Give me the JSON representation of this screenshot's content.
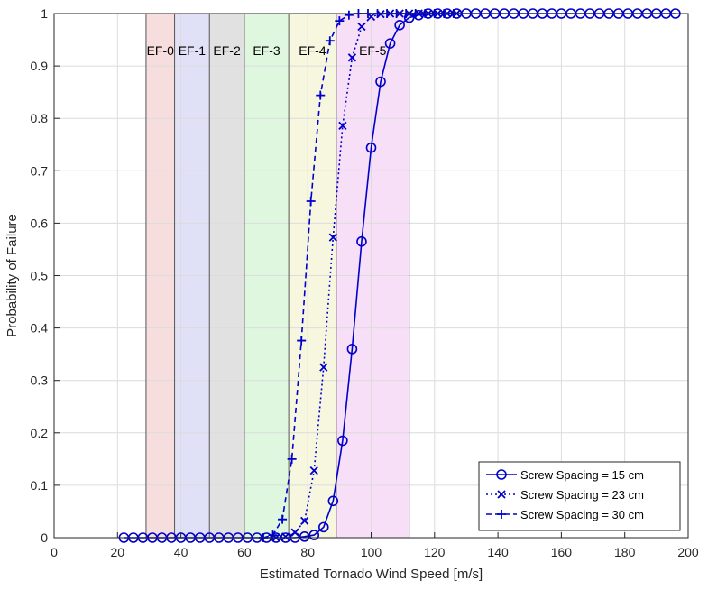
{
  "chart_data": {
    "type": "line",
    "xlabel": "Estimated Tornado Wind Speed [m/s]",
    "ylabel": "Probability of Failure",
    "xlim": [
      0,
      200
    ],
    "ylim": [
      0,
      1
    ],
    "xticks": [
      0,
      20,
      40,
      60,
      80,
      100,
      120,
      140,
      160,
      180,
      200
    ],
    "yticks": [
      0,
      0.1,
      0.2,
      0.3,
      0.4,
      0.5,
      0.6,
      0.7,
      0.8,
      0.9,
      1
    ],
    "grid": true,
    "legend_position": "bottom-right",
    "bands": [
      {
        "label": "EF-0",
        "x0": 29,
        "x1": 38,
        "color": "#f7dede"
      },
      {
        "label": "EF-1",
        "x0": 38,
        "x1": 49,
        "color": "#e0e0f7"
      },
      {
        "label": "EF-2",
        "x0": 49,
        "x1": 60,
        "color": "#e1e1e1"
      },
      {
        "label": "EF-3",
        "x0": 60,
        "x1": 74,
        "color": "#dff7df"
      },
      {
        "label": "EF-4",
        "x0": 74,
        "x1": 89,
        "color": "#f7f7df"
      },
      {
        "label": "EF-5",
        "x0": 89,
        "x1": 112,
        "color": "#f7dff7"
      }
    ],
    "series": [
      {
        "name": "Screw Spacing = 15 cm",
        "color": "#0000cc",
        "dash": "solid",
        "marker": "circle",
        "x": [
          22,
          25,
          28,
          31,
          34,
          37,
          40,
          43,
          46,
          49,
          52,
          55,
          58,
          61,
          64,
          67,
          70,
          73,
          76,
          79,
          82,
          85,
          88,
          91,
          94,
          97,
          100,
          103,
          106,
          109,
          112,
          115,
          118,
          121,
          124,
          127,
          130,
          133,
          136,
          139,
          142,
          145,
          148,
          151,
          154,
          157,
          160,
          163,
          166,
          169,
          172,
          175,
          178,
          181,
          184,
          187,
          190,
          193,
          196
        ],
        "y": [
          0,
          0,
          0,
          0,
          0,
          0,
          0,
          0,
          0,
          0,
          0,
          0,
          0,
          0,
          0,
          0,
          0,
          0,
          0,
          0.002,
          0.005,
          0.02,
          0.07,
          0.185,
          0.36,
          0.565,
          0.744,
          0.87,
          0.943,
          0.978,
          0.992,
          0.997,
          1,
          1,
          1,
          1,
          1,
          1,
          1,
          1,
          1,
          1,
          1,
          1,
          1,
          1,
          1,
          1,
          1,
          1,
          1,
          1,
          1,
          1,
          1,
          1,
          1,
          1,
          1
        ]
      },
      {
        "name": "Screw Spacing = 23 cm",
        "color": "#0000cc",
        "dash": "dotted",
        "marker": "x",
        "x": [
          70,
          73,
          76,
          79,
          82,
          85,
          88,
          91,
          94,
          97,
          100,
          103,
          106,
          109,
          112,
          115,
          118,
          121,
          124,
          127
        ],
        "y": [
          0,
          0.002,
          0.01,
          0.032,
          0.128,
          0.325,
          0.573,
          0.786,
          0.916,
          0.975,
          0.994,
          0.999,
          1,
          1,
          1,
          1,
          1,
          1,
          1,
          1
        ]
      },
      {
        "name": "Screw Spacing = 30 cm",
        "color": "#0000cc",
        "dash": "dashed",
        "marker": "plus",
        "x": [
          66,
          69,
          72,
          75,
          78,
          81,
          84,
          87,
          90,
          93,
          96,
          99,
          102,
          105,
          108,
          111,
          114,
          117,
          120,
          123,
          126
        ],
        "y": [
          0,
          0.005,
          0.035,
          0.15,
          0.376,
          0.642,
          0.844,
          0.948,
          0.986,
          0.997,
          1,
          1,
          1,
          1,
          1,
          1,
          1,
          1,
          1,
          1,
          1
        ]
      }
    ]
  }
}
